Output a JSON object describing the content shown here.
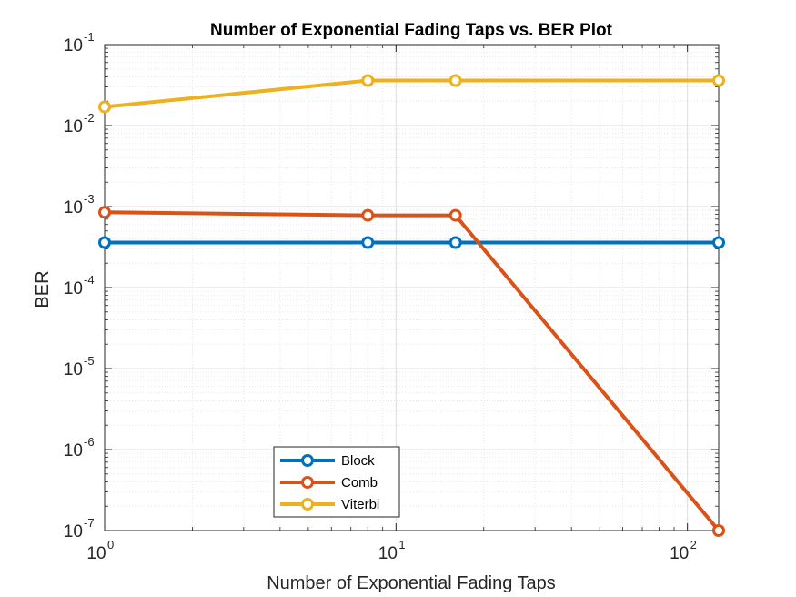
{
  "chart_data": {
    "type": "line",
    "title": "Number of Exponential Fading Taps vs. BER Plot",
    "xlabel": "Number of Exponential Fading Taps",
    "ylabel": "BER",
    "x_scale": "log",
    "y_scale": "log",
    "xlim": [
      1,
      128
    ],
    "ylim": [
      1e-07,
      0.1
    ],
    "x_ticks": [
      {
        "value": 1,
        "base": "10",
        "exponent": "0"
      },
      {
        "value": 10,
        "base": "10",
        "exponent": "1"
      },
      {
        "value": 100,
        "base": "10",
        "exponent": "2"
      }
    ],
    "y_ticks": [
      {
        "value": 1e-07,
        "base": "10",
        "exponent": "-7"
      },
      {
        "value": 1e-06,
        "base": "10",
        "exponent": "-6"
      },
      {
        "value": 1e-05,
        "base": "10",
        "exponent": "-5"
      },
      {
        "value": 0.0001,
        "base": "10",
        "exponent": "-4"
      },
      {
        "value": 0.001,
        "base": "10",
        "exponent": "-3"
      },
      {
        "value": 0.01,
        "base": "10",
        "exponent": "-2"
      },
      {
        "value": 0.1,
        "base": "10",
        "exponent": "-1"
      }
    ],
    "grid": true,
    "minor_grid": true,
    "legend_position": "bottom-left",
    "x": [
      1,
      8,
      16,
      128
    ],
    "series": [
      {
        "name": "Block",
        "color": "#0072BD",
        "values": [
          0.00036,
          0.00036,
          0.00036,
          0.00036
        ]
      },
      {
        "name": "Comb",
        "color": "#D95319",
        "values": [
          0.00085,
          0.00078,
          0.00078,
          1e-07
        ]
      },
      {
        "name": "Viterbi",
        "color": "#EDB120",
        "values": [
          0.017,
          0.036,
          0.036,
          0.036
        ]
      }
    ]
  }
}
